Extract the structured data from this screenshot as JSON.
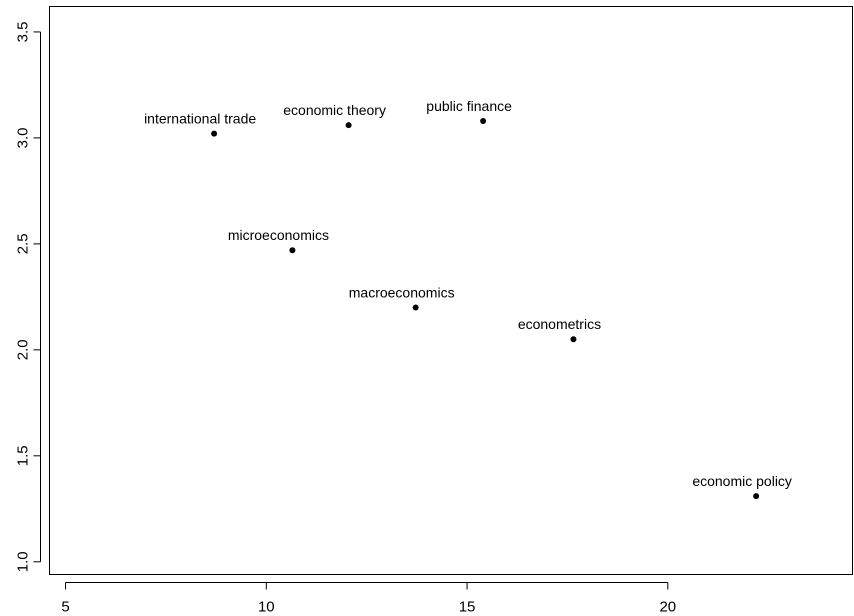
{
  "chart_data": {
    "type": "scatter",
    "title": "",
    "xlabel": "",
    "ylabel": "",
    "xlim": [
      4.6,
      24.6
    ],
    "ylim": [
      0.94,
      3.62
    ],
    "x_ticks": [
      5,
      10,
      15,
      20
    ],
    "y_ticks": [
      1.0,
      1.5,
      2.0,
      2.5,
      3.0,
      3.5
    ],
    "x_tick_labels": [
      "5",
      "10",
      "15",
      "20"
    ],
    "y_tick_labels": [
      "1.0",
      "1.5",
      "2.0",
      "2.5",
      "3.0",
      "3.5"
    ],
    "grid": false,
    "points": [
      {
        "label": "international trade",
        "x": 8.7,
        "y": 3.02
      },
      {
        "label": "economic theory",
        "x": 12.05,
        "y": 3.06
      },
      {
        "label": "public finance",
        "x": 15.4,
        "y": 3.08
      },
      {
        "label": "microeconomics",
        "x": 10.65,
        "y": 2.47
      },
      {
        "label": "macroeconomics",
        "x": 13.72,
        "y": 2.2
      },
      {
        "label": "econometrics",
        "x": 17.65,
        "y": 2.05
      },
      {
        "label": "economic policy",
        "x": 22.2,
        "y": 1.31
      }
    ]
  }
}
